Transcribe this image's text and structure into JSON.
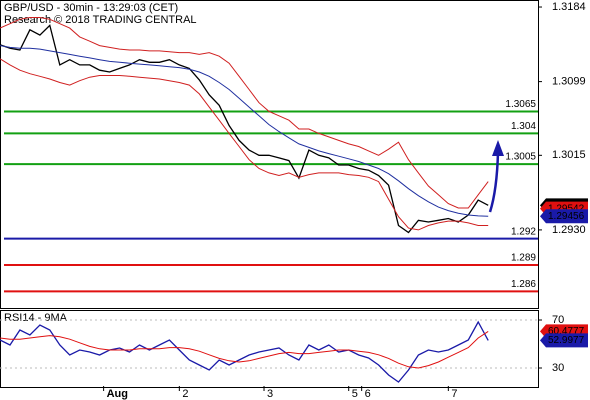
{
  "chart_data": [
    {
      "type": "line",
      "title": "GBP/USD - 30min - 13:29:03 (CET)",
      "subtitle": "Research © 2018 TRADING CENTRAL",
      "xlim": [
        0,
        54
      ],
      "ylim": [
        1.2841,
        1.3192
      ],
      "yticks": [
        1.3184,
        1.3099,
        1.3015,
        {
          "value": 1.293,
          "label": "1.2930"
        }
      ],
      "x": [
        0,
        1,
        2,
        3,
        4,
        5,
        6,
        7,
        8,
        9,
        10,
        11,
        12,
        13,
        14,
        15,
        16,
        17,
        18,
        19,
        20,
        21,
        22,
        23,
        24,
        25,
        26,
        27,
        28,
        29,
        30,
        31,
        32,
        33,
        34,
        35,
        36,
        37,
        38,
        39,
        40,
        41,
        42,
        43,
        44,
        45,
        46,
        47,
        48,
        49
      ],
      "series": [
        {
          "color": "#000000",
          "values": [
            1.3141,
            1.3137,
            1.3135,
            1.3158,
            1.3152,
            1.3163,
            1.3118,
            1.3124,
            1.3118,
            1.3118,
            1.3112,
            1.311,
            1.3114,
            1.3118,
            1.3124,
            1.3121,
            1.3121,
            1.3124,
            1.3118,
            1.3114,
            1.3101,
            1.3084,
            1.3072,
            1.3049,
            1.3032,
            1.3021,
            1.3015,
            1.3015,
            1.3012,
            1.3009,
            1.2989,
            1.3021,
            1.3015,
            1.3012,
            1.3004,
            1.3004,
            1.3,
            1.2998,
            1.2992,
            1.2981,
            1.2935,
            1.2927,
            1.2941,
            1.2939,
            1.2941,
            1.2943,
            1.2939,
            1.2947,
            1.2964,
            1.2958
          ]
        },
        {
          "color": "#2030a0",
          "values": [
            1.314,
            1.3138,
            1.3137,
            1.3137,
            1.3136,
            1.3134,
            1.3132,
            1.313,
            1.3128,
            1.3126,
            1.3124,
            1.3122,
            1.3121,
            1.312,
            1.3119,
            1.3118,
            1.3117,
            1.3116,
            1.3115,
            1.3113,
            1.311,
            1.3105,
            1.3098,
            1.309,
            1.308,
            1.307,
            1.306,
            1.305,
            1.3042,
            1.3035,
            1.3028,
            1.3024,
            1.302,
            1.3017,
            1.3014,
            1.3011,
            1.3008,
            1.3004,
            1.3,
            1.2994,
            1.2986,
            1.2977,
            1.2969,
            1.2962,
            1.2956,
            1.2952,
            1.2949,
            1.2947,
            1.2946,
            1.29456
          ]
        },
        {
          "color": "#d02020",
          "values": [
            1.316,
            1.3165,
            1.317,
            1.3172,
            1.3172,
            1.317,
            1.3165,
            1.316,
            1.315,
            1.3145,
            1.314,
            1.3138,
            1.3136,
            1.3135,
            1.3135,
            1.3134,
            1.3134,
            1.3133,
            1.3132,
            1.3132,
            1.313,
            1.3132,
            1.3128,
            1.312,
            1.3105,
            1.309,
            1.3075,
            1.3065,
            1.306,
            1.3055,
            1.3045,
            1.3045,
            1.304,
            1.3036,
            1.3032,
            1.3028,
            1.3025,
            1.302,
            1.3015,
            1.3022,
            1.303,
            1.301,
            1.2995,
            1.298,
            1.297,
            1.296,
            1.2955,
            1.2955,
            1.297,
            1.2985
          ]
        },
        {
          "color": "#d02020",
          "values": [
            1.3125,
            1.3118,
            1.3112,
            1.3108,
            1.3105,
            1.3102,
            1.3098,
            1.3095,
            1.31,
            1.3104,
            1.3106,
            1.3106,
            1.3106,
            1.3105,
            1.3104,
            1.3103,
            1.3102,
            1.31,
            1.3098,
            1.3095,
            1.3085,
            1.307,
            1.3055,
            1.304,
            1.3025,
            1.301,
            1.3,
            1.2995,
            1.2992,
            1.2995,
            1.299,
            1.2993,
            1.2995,
            1.2995,
            1.2995,
            1.2993,
            1.2992,
            1.299,
            1.2985,
            1.2965,
            1.2945,
            1.2932,
            1.293,
            1.2935,
            1.2938,
            1.294,
            1.294,
            1.2938,
            1.2935,
            1.2935
          ]
        }
      ],
      "levels": [
        {
          "value": 1.3065,
          "color": "#13a013"
        },
        {
          "value": 1.304,
          "color": "#13a013"
        },
        {
          "value": 1.3005,
          "color": "#13a013"
        },
        {
          "value": 1.292,
          "color": "#1a1aa8"
        },
        {
          "value": 1.289,
          "color": "#e01010"
        },
        {
          "value": 1.286,
          "color": "#e01010"
        }
      ],
      "price_tags": [
        {
          "value": 1.2958,
          "color": "#000000"
        },
        {
          "value": 1.29542,
          "color": "#e01010"
        },
        {
          "value": 1.29456,
          "color": "#1a1aa8"
        }
      ]
    },
    {
      "type": "line",
      "title": "RSI14 - 9MA",
      "xlim": [
        0,
        54
      ],
      "ylim": [
        15,
        77.5
      ],
      "yticks": [
        70,
        30
      ],
      "xticks": [
        {
          "value": 10.4,
          "label": "Aug"
        },
        {
          "value": 18,
          "label": "2"
        },
        {
          "value": 26.5,
          "label": "3"
        },
        {
          "value": 35,
          "label": "5"
        },
        {
          "value": 36.3,
          "label": "6"
        },
        {
          "value": 45,
          "label": "7"
        }
      ],
      "x": [
        0,
        1,
        2,
        3,
        4,
        5,
        6,
        7,
        8,
        9,
        10,
        11,
        12,
        13,
        14,
        15,
        16,
        17,
        18,
        19,
        20,
        21,
        22,
        23,
        24,
        25,
        26,
        27,
        28,
        29,
        30,
        31,
        32,
        33,
        34,
        35,
        36,
        37,
        38,
        39,
        40,
        41,
        42,
        43,
        44,
        45,
        46,
        47,
        48,
        49
      ],
      "series": [
        {
          "color": "#1a1aa8",
          "values": [
            53.3,
            49.2,
            61.7,
            57.5,
            65.8,
            61.7,
            49.2,
            40.8,
            45,
            43.3,
            40.8,
            45,
            46.7,
            43.3,
            49.2,
            45,
            49.2,
            53.3,
            45,
            36.7,
            32.5,
            28.3,
            36.7,
            32.5,
            36.7,
            40.8,
            43.3,
            45,
            46.7,
            40.8,
            36.7,
            49.2,
            45,
            49.2,
            43.3,
            45,
            40.8,
            38.3,
            32.5,
            24.2,
            18.3,
            28.3,
            40.8,
            45,
            43.3,
            45,
            49.2,
            53.3,
            68.3,
            52.9977
          ]
        },
        {
          "color": "#e01010",
          "values": [
            55,
            54,
            54,
            55,
            56,
            57,
            56,
            54,
            51,
            48,
            46,
            45,
            45,
            45,
            46,
            46,
            46,
            47,
            47,
            46,
            44,
            41,
            38,
            36,
            35,
            36,
            38,
            40,
            42,
            43,
            42,
            42,
            43,
            44,
            45,
            45,
            44,
            43,
            41,
            38,
            34,
            31,
            30,
            32,
            35,
            39,
            43,
            47,
            55,
            60.4777
          ]
        }
      ],
      "price_tags": [
        {
          "value": 60.4777,
          "color": "#e01010"
        },
        {
          "value": 52.9977,
          "color": "#1a1aa8"
        }
      ]
    }
  ]
}
